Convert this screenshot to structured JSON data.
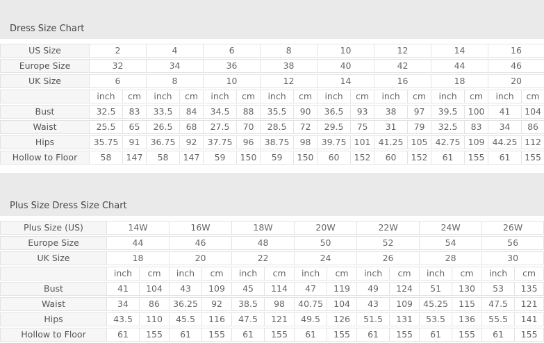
{
  "colors": {
    "page_background": "#eaeaea",
    "table_background": "#ffffff",
    "label_cell_background": "#f6f6f6",
    "border": "#e3e3e3",
    "text": "#555555"
  },
  "tables": [
    {
      "title": "Dress Size Chart",
      "units": [
        "inch",
        "cm"
      ],
      "size_rows": [
        {
          "label": "US Size",
          "values": [
            "2",
            "4",
            "6",
            "8",
            "10",
            "12",
            "14",
            "16"
          ]
        },
        {
          "label": "Europe Size",
          "values": [
            "32",
            "34",
            "36",
            "38",
            "40",
            "42",
            "44",
            "46"
          ]
        },
        {
          "label": "UK Size",
          "values": [
            "6",
            "8",
            "10",
            "12",
            "14",
            "16",
            "18",
            "20"
          ]
        }
      ],
      "measure_rows": [
        {
          "label": "Bust",
          "pairs": [
            [
              "32.5",
              "83"
            ],
            [
              "33.5",
              "84"
            ],
            [
              "34.5",
              "88"
            ],
            [
              "35.5",
              "90"
            ],
            [
              "36.5",
              "93"
            ],
            [
              "38",
              "97"
            ],
            [
              "39.5",
              "100"
            ],
            [
              "41",
              "104"
            ]
          ]
        },
        {
          "label": "Waist",
          "pairs": [
            [
              "25.5",
              "65"
            ],
            [
              "26.5",
              "68"
            ],
            [
              "27.5",
              "70"
            ],
            [
              "28.5",
              "72"
            ],
            [
              "29.5",
              "75"
            ],
            [
              "31",
              "79"
            ],
            [
              "32.5",
              "83"
            ],
            [
              "34",
              "86"
            ]
          ]
        },
        {
          "label": "Hips",
          "pairs": [
            [
              "35.75",
              "91"
            ],
            [
              "36.75",
              "92"
            ],
            [
              "37.75",
              "96"
            ],
            [
              "38.75",
              "98"
            ],
            [
              "39.75",
              "101"
            ],
            [
              "41.25",
              "105"
            ],
            [
              "42.75",
              "109"
            ],
            [
              "44.25",
              "112"
            ]
          ]
        },
        {
          "label": "Hollow to Floor",
          "pairs": [
            [
              "58",
              "147"
            ],
            [
              "58",
              "147"
            ],
            [
              "59",
              "150"
            ],
            [
              "59",
              "150"
            ],
            [
              "60",
              "152"
            ],
            [
              "60",
              "152"
            ],
            [
              "61",
              "155"
            ],
            [
              "61",
              "155"
            ]
          ]
        }
      ]
    },
    {
      "title": "Plus Size Dress Size Chart",
      "units": [
        "inch",
        "cm"
      ],
      "size_rows": [
        {
          "label": "Plus Size (US)",
          "values": [
            "14W",
            "16W",
            "18W",
            "20W",
            "22W",
            "24W",
            "26W"
          ]
        },
        {
          "label": "Europe Size",
          "values": [
            "44",
            "46",
            "48",
            "50",
            "52",
            "54",
            "56"
          ]
        },
        {
          "label": "UK Size",
          "values": [
            "18",
            "20",
            "22",
            "24",
            "26",
            "28",
            "30"
          ]
        }
      ],
      "measure_rows": [
        {
          "label": "Bust",
          "pairs": [
            [
              "41",
              "104"
            ],
            [
              "43",
              "109"
            ],
            [
              "45",
              "114"
            ],
            [
              "47",
              "119"
            ],
            [
              "49",
              "124"
            ],
            [
              "51",
              "130"
            ],
            [
              "53",
              "135"
            ]
          ]
        },
        {
          "label": "Waist",
          "pairs": [
            [
              "34",
              "86"
            ],
            [
              "36.25",
              "92"
            ],
            [
              "38.5",
              "98"
            ],
            [
              "40.75",
              "104"
            ],
            [
              "43",
              "109"
            ],
            [
              "45.25",
              "115"
            ],
            [
              "47.5",
              "121"
            ]
          ]
        },
        {
          "label": "Hips",
          "pairs": [
            [
              "43.5",
              "110"
            ],
            [
              "45.5",
              "116"
            ],
            [
              "47.5",
              "121"
            ],
            [
              "49.5",
              "126"
            ],
            [
              "51.5",
              "131"
            ],
            [
              "53.5",
              "136"
            ],
            [
              "55.5",
              "141"
            ]
          ]
        },
        {
          "label": "Hollow to Floor",
          "pairs": [
            [
              "61",
              "155"
            ],
            [
              "61",
              "155"
            ],
            [
              "61",
              "155"
            ],
            [
              "61",
              "155"
            ],
            [
              "61",
              "155"
            ],
            [
              "61",
              "155"
            ],
            [
              "61",
              "155"
            ]
          ]
        }
      ]
    }
  ]
}
